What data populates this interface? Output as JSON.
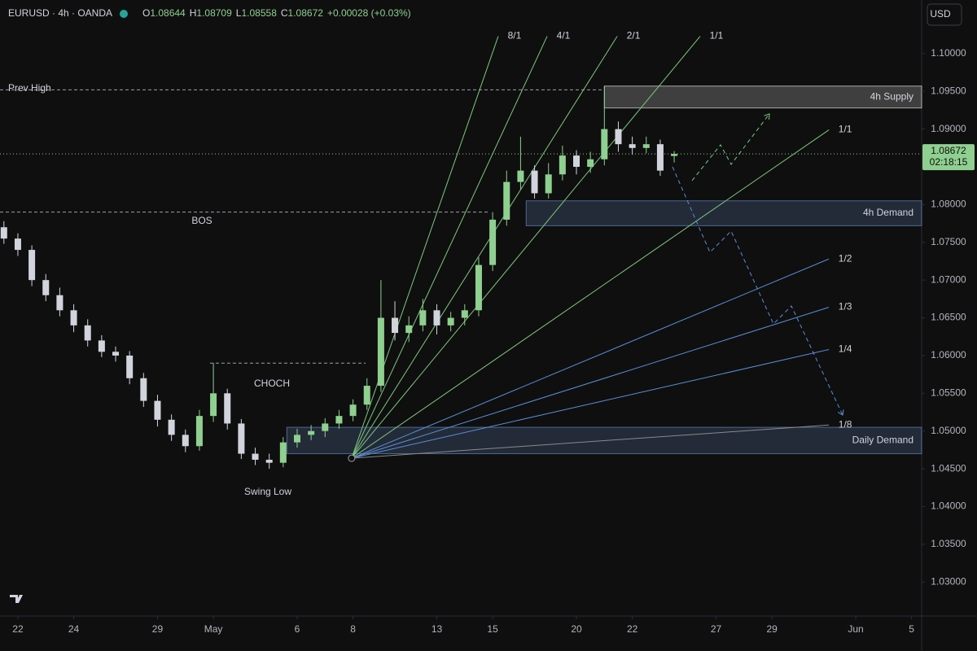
{
  "header": {
    "symbol": "EURUSD · 4h · OANDA",
    "ohlc": [
      {
        "label": "O",
        "value": 1.08644
      },
      {
        "label": "H",
        "value": 1.08709
      },
      {
        "label": "L",
        "value": 1.08558
      },
      {
        "label": "C",
        "value": 1.08672
      }
    ],
    "change": "+0.00028 (+0.03%)",
    "currency": "USD"
  },
  "chart_data": {
    "type": "candlestick",
    "x": [
      -0.5,
      0,
      0.5,
      1,
      1.5,
      2,
      2.5,
      3,
      3.5,
      4,
      4.5,
      5,
      5.5,
      6,
      6.5,
      7,
      7.5,
      8,
      8.5,
      9,
      9.5,
      10,
      10.5,
      11,
      11.5,
      12,
      12.5,
      13,
      13.5,
      14,
      14.5,
      15,
      15.5,
      16,
      16.5,
      17,
      17.5,
      18,
      18.5,
      19,
      19.5,
      20,
      20.5,
      21,
      21.5,
      22,
      22.5,
      23,
      23.5
    ],
    "series": [
      {
        "up_color": "#8fcf8f",
        "down_color": "#d1d4dc",
        "open": [
          1.077,
          1.0755,
          1.074,
          1.07,
          1.068,
          1.066,
          1.064,
          1.062,
          1.0605,
          1.06,
          1.057,
          1.054,
          1.0515,
          1.0495,
          1.048,
          1.052,
          1.055,
          1.051,
          1.047,
          1.0462,
          1.0458,
          1.0485,
          1.0495,
          1.05,
          1.051,
          1.052,
          1.0535,
          1.056,
          1.065,
          1.063,
          1.064,
          1.066,
          1.064,
          1.065,
          1.066,
          1.072,
          1.078,
          1.083,
          1.0845,
          1.0815,
          1.084,
          1.0865,
          1.085,
          1.086,
          1.09,
          1.088,
          1.0875,
          1.088,
          1.08644
        ],
        "high": [
          1.0778,
          1.0762,
          1.0746,
          1.0708,
          1.069,
          1.0668,
          1.0648,
          1.0627,
          1.0612,
          1.0606,
          1.0577,
          1.0548,
          1.0522,
          1.0502,
          1.0528,
          1.059,
          1.0556,
          1.0516,
          1.0478,
          1.047,
          1.0492,
          1.0503,
          1.0508,
          1.0517,
          1.0528,
          1.0542,
          1.057,
          1.07,
          1.0672,
          1.0652,
          1.0675,
          1.0668,
          1.0658,
          1.0668,
          1.073,
          1.079,
          1.0845,
          1.089,
          1.0852,
          1.0855,
          1.0878,
          1.0872,
          1.087,
          1.0957,
          1.091,
          1.089,
          1.089,
          1.0886,
          1.08709
        ],
        "low": [
          1.0748,
          1.0732,
          1.0692,
          1.0672,
          1.0652,
          1.0631,
          1.0612,
          1.0598,
          1.0592,
          1.0562,
          1.0532,
          1.0506,
          1.0487,
          1.0472,
          1.0474,
          1.0512,
          1.0502,
          1.0463,
          1.0455,
          1.045,
          1.0452,
          1.0478,
          1.0488,
          1.0492,
          1.0503,
          1.0513,
          1.0528,
          1.0552,
          1.062,
          1.0618,
          1.0632,
          1.0628,
          1.0632,
          1.064,
          1.0652,
          1.0712,
          1.0772,
          1.082,
          1.0808,
          1.0808,
          1.0832,
          1.084,
          1.0842,
          1.0852,
          1.087,
          1.0866,
          1.0868,
          1.0838,
          1.08558
        ],
        "close": [
          1.0755,
          1.074,
          1.07,
          1.068,
          1.066,
          1.064,
          1.062,
          1.0605,
          1.06,
          1.057,
          1.054,
          1.0515,
          1.0495,
          1.048,
          1.052,
          1.055,
          1.051,
          1.047,
          1.0462,
          1.0458,
          1.0485,
          1.0495,
          1.05,
          1.051,
          1.052,
          1.0535,
          1.056,
          1.065,
          1.063,
          1.064,
          1.066,
          1.064,
          1.065,
          1.066,
          1.072,
          1.078,
          1.083,
          1.0845,
          1.0815,
          1.084,
          1.0865,
          1.085,
          1.086,
          1.09,
          1.088,
          1.0875,
          1.088,
          1.0845,
          1.08672
        ]
      }
    ],
    "xlim": [
      -0.64,
      32.36
    ],
    "xticks": [
      {
        "value": 0,
        "label": "22"
      },
      {
        "value": 2,
        "label": "24"
      },
      {
        "value": 5,
        "label": "29"
      },
      {
        "value": 7,
        "label": "May"
      },
      {
        "value": 10,
        "label": "6"
      },
      {
        "value": 12,
        "label": "8"
      },
      {
        "value": 15,
        "label": "13"
      },
      {
        "value": 17,
        "label": "15"
      },
      {
        "value": 20,
        "label": "20"
      },
      {
        "value": 22,
        "label": "22"
      },
      {
        "value": 25,
        "label": "27"
      },
      {
        "value": 27,
        "label": "29"
      },
      {
        "value": 30,
        "label": "Jun"
      },
      {
        "value": 32,
        "label": "5"
      }
    ],
    "ylim": [
      1.0255,
      1.1071
    ],
    "yticks": [
      {
        "value": 1.03,
        "label": "1.03000"
      },
      {
        "value": 1.035,
        "label": "1.03500"
      },
      {
        "value": 1.04,
        "label": "1.04000"
      },
      {
        "value": 1.045,
        "label": "1.04500"
      },
      {
        "value": 1.05,
        "label": "1.05000"
      },
      {
        "value": 1.055,
        "label": "1.05500"
      },
      {
        "value": 1.06,
        "label": "1.06000"
      },
      {
        "value": 1.065,
        "label": "1.06500"
      },
      {
        "value": 1.07,
        "label": "1.07000"
      },
      {
        "value": 1.075,
        "label": "1.07500"
      },
      {
        "value": 1.08,
        "label": "1.08000"
      },
      {
        "value": 1.085,
        "label": "1.08500"
      },
      {
        "value": 1.09,
        "label": "1.09000"
      },
      {
        "value": 1.095,
        "label": "1.09500"
      },
      {
        "value": 1.1,
        "label": "1.10000"
      }
    ],
    "last_price": 1.08672,
    "countdown": "02:18:15",
    "levels": [
      {
        "label": "Prev High",
        "price": 1.0952,
        "from": -0.64,
        "to": 21.0
      },
      {
        "label": "BOS",
        "price": 1.079,
        "from": -0.64,
        "to": 16.85
      },
      {
        "label": "CHOCH",
        "price": 1.059,
        "from": 6.88,
        "to": 12.45
      }
    ],
    "swing_low": "Swing Low",
    "zones": [
      {
        "label": "4h Supply",
        "from": 21.0,
        "low": 1.0928,
        "high": 1.0957,
        "color": "#ffffff"
      },
      {
        "label": "4h Demand",
        "from": 18.2,
        "low": 1.0772,
        "high": 1.0805,
        "color": "#6f9bd8"
      },
      {
        "label": "Daily Demand",
        "from": 9.63,
        "low": 1.047,
        "high": 1.0505,
        "color": "#6f9bd8"
      }
    ],
    "fan": {
      "origin": {
        "x": 11.95,
        "price": 1.0464
      },
      "lines": [
        {
          "label": "8/1",
          "end_x": 17.2,
          "end_price": 1.1023,
          "color": "#7fc77f"
        },
        {
          "label": "4/1",
          "end_x": 18.95,
          "end_price": 1.1023,
          "color": "#7fc77f"
        },
        {
          "label": "2/1",
          "end_x": 21.46,
          "end_price": 1.1023,
          "color": "#7fc77f"
        },
        {
          "label": "1/1",
          "end_x": 24.43,
          "end_price": 1.1023,
          "color": "#7fc77f"
        },
        {
          "label": "1/1",
          "end_x": 29.04,
          "end_price": 1.0899,
          "color": "#7fc77f"
        },
        {
          "label": "1/2",
          "end_x": 29.04,
          "end_price": 1.0728,
          "color": "#5b8fd6"
        },
        {
          "label": "1/3",
          "end_x": 29.04,
          "end_price": 1.0664,
          "color": "#5b8fd6"
        },
        {
          "label": "1/4",
          "end_x": 29.04,
          "end_price": 1.0608,
          "color": "#5b8fd6"
        },
        {
          "label": "1/8",
          "end_x": 29.04,
          "end_price": 1.0508,
          "color": "#8a8a8a"
        }
      ]
    }
  }
}
